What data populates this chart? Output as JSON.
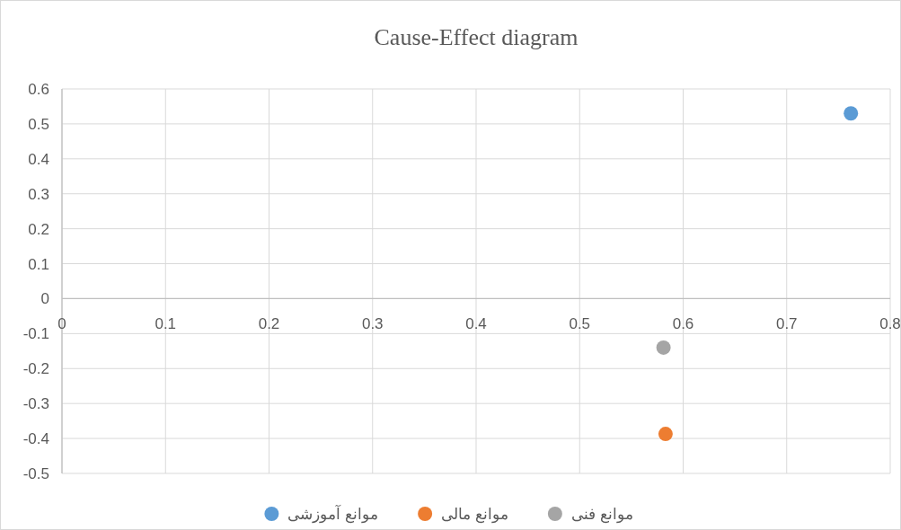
{
  "chart_data": {
    "type": "scatter",
    "title": "Cause-Effect diagram",
    "xlim": [
      0,
      0.8
    ],
    "xticks": [
      0,
      0.1,
      0.2,
      0.3,
      0.4,
      0.5,
      0.6,
      0.7,
      0.8
    ],
    "ylim": [
      -0.5,
      0.6
    ],
    "yticks": [
      -0.5,
      -0.4,
      -0.3,
      -0.2,
      -0.1,
      0,
      0.1,
      0.2,
      0.3,
      0.4,
      0.5,
      0.6
    ],
    "grid": true,
    "legend": "bottom",
    "marker": "circle",
    "series": [
      {
        "name": "موانع آموزشی",
        "color": "#5b9bd5",
        "x": [
          0.762
        ],
        "values": [
          0.53
        ]
      },
      {
        "name": "موانع مالی",
        "color": "#ed7d31",
        "x": [
          0.583
        ],
        "values": [
          -0.387
        ]
      },
      {
        "name": "موانع فنی",
        "color": "#a5a5a5",
        "x": [
          0.581
        ],
        "values": [
          -0.14
        ]
      }
    ]
  }
}
